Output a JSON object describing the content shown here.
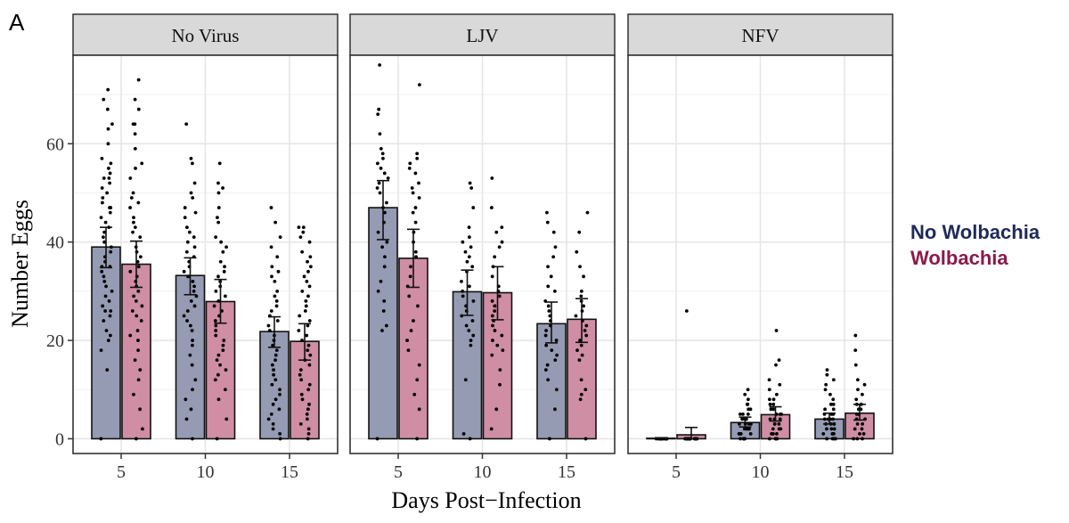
{
  "panel_letter": "A",
  "chart_data": {
    "type": "bar",
    "xlabel": "Days Post−Infection",
    "ylabel": "Number Eggs",
    "categories": [
      "5",
      "10",
      "15"
    ],
    "ylim": [
      -3,
      78
    ],
    "yticks": [
      0,
      20,
      40,
      60
    ],
    "grid": true,
    "legend_position": "right",
    "series_names": [
      "No Wolbachia",
      "Wolbachia"
    ],
    "colors": {
      "No Wolbachia": "#1f2a5a",
      "Wolbachia": "#8b1a4a",
      "No Wolbachia fill": "#959bb3",
      "Wolbachia fill": "#cf8ea3",
      "strip": "#d9d9d9"
    },
    "panels": [
      {
        "title": "No Virus",
        "bars": [
          {
            "day": "5",
            "group": "No Wolbachia",
            "mean": 39.0,
            "se_low": 34.8,
            "se_high": 43.0,
            "points": [
              71,
              69,
              67,
              64,
              63,
              60,
              57,
              56,
              55,
              54,
              53,
              53,
              52,
              51,
              50,
              49,
              48,
              47,
              47,
              46,
              45,
              44,
              43,
              42,
              41,
              40,
              39,
              38,
              37,
              36,
              35,
              35,
              34,
              33,
              32,
              31,
              30,
              29,
              28,
              27,
              26,
              26,
              25,
              24,
              22,
              21,
              20,
              18,
              14,
              0
            ]
          },
          {
            "day": "5",
            "group": "Wolbachia",
            "mean": 35.5,
            "se_low": 30.8,
            "se_high": 40.2,
            "points": [
              73,
              69,
              67,
              64,
              64,
              62,
              59,
              56,
              55,
              53,
              50,
              49,
              48,
              47,
              45,
              44,
              43,
              42,
              41,
              39,
              38,
              37,
              36,
              35,
              34,
              33,
              32,
              31,
              30,
              29,
              28,
              27,
              26,
              25,
              24,
              22,
              21,
              20,
              18,
              16,
              14,
              12,
              9,
              6,
              2,
              0
            ]
          },
          {
            "day": "10",
            "group": "No Wolbachia",
            "mean": 33.2,
            "se_low": 29.3,
            "se_high": 36.8,
            "points": [
              64,
              57,
              56,
              52,
              50,
              49,
              47,
              46,
              45,
              43,
              42,
              41,
              40,
              39,
              38,
              37,
              36,
              35,
              34,
              33,
              32,
              31,
              30,
              29,
              28,
              27,
              26,
              25,
              24,
              23,
              22,
              20,
              19,
              17,
              15,
              12,
              10,
              8,
              6,
              4,
              0
            ]
          },
          {
            "day": "10",
            "group": "Wolbachia",
            "mean": 27.9,
            "se_low": 23.5,
            "se_high": 32.4,
            "points": [
              56,
              52,
              51,
              50,
              47,
              45,
              44,
              41,
              40,
              39,
              38,
              36,
              35,
              34,
              33,
              32,
              31,
              30,
              29,
              28,
              27,
              26,
              25,
              24,
              23,
              22,
              21,
              20,
              19,
              18,
              17,
              16,
              15,
              14,
              13,
              12,
              10,
              8,
              4,
              0
            ]
          },
          {
            "day": "15",
            "group": "No Wolbachia",
            "mean": 21.8,
            "se_low": 18.6,
            "se_high": 24.8,
            "points": [
              47,
              44,
              41,
              39,
              37,
              35,
              34,
              33,
              32,
              30,
              29,
              28,
              27,
              26,
              25,
              24,
              23,
              22,
              21,
              20,
              19,
              18,
              17,
              16,
              15,
              14,
              13,
              12,
              11,
              10,
              9,
              8,
              7,
              6,
              5,
              4,
              3,
              2,
              1,
              0
            ]
          },
          {
            "day": "15",
            "group": "Wolbachia",
            "mean": 19.8,
            "se_low": 16.0,
            "se_high": 23.4,
            "points": [
              43,
              43,
              42,
              41,
              40,
              38,
              37,
              36,
              35,
              34,
              33,
              32,
              31,
              30,
              29,
              28,
              27,
              26,
              25,
              24,
              23,
              22,
              21,
              20,
              19,
              18,
              17,
              16,
              15,
              14,
              13,
              12,
              11,
              10,
              9,
              8,
              7,
              6,
              5,
              4,
              3,
              2,
              1,
              0
            ]
          }
        ]
      },
      {
        "title": "LJV",
        "bars": [
          {
            "day": "5",
            "group": "No Wolbachia",
            "mean": 47.0,
            "se_low": 40.5,
            "se_high": 52.5,
            "points": [
              76,
              67,
              66,
              62,
              59,
              58,
              57,
              56,
              55,
              54,
              53,
              52,
              51,
              50,
              48,
              47,
              46,
              44,
              42,
              40,
              39,
              37,
              35,
              32,
              30,
              28,
              26,
              23,
              22,
              0
            ]
          },
          {
            "day": "5",
            "group": "Wolbachia",
            "mean": 36.7,
            "se_low": 30.8,
            "se_high": 42.6,
            "points": [
              72,
              58,
              57,
              56,
              55,
              54,
              52,
              51,
              50,
              49,
              47,
              46,
              44,
              42,
              40,
              38,
              37,
              35,
              33,
              31,
              29,
              27,
              24,
              22,
              20,
              18,
              15,
              12,
              9,
              6,
              0
            ]
          },
          {
            "day": "10",
            "group": "No Wolbachia",
            "mean": 29.9,
            "se_low": 25.1,
            "se_high": 34.3,
            "points": [
              52,
              51,
              47,
              43,
              41,
              40,
              39,
              38,
              37,
              36,
              35,
              34,
              32,
              31,
              30,
              29,
              28,
              27,
              26,
              25,
              24,
              23,
              22,
              21,
              20,
              19,
              12,
              1,
              0
            ]
          },
          {
            "day": "10",
            "group": "Wolbachia",
            "mean": 29.7,
            "se_low": 24.2,
            "se_high": 35.0,
            "points": [
              53,
              47,
              43,
              42,
              40,
              39,
              37,
              35,
              33,
              31,
              30,
              29,
              28,
              27,
              26,
              25,
              24,
              23,
              22,
              21,
              20,
              19,
              18,
              17,
              14,
              11,
              6,
              2
            ]
          },
          {
            "day": "15",
            "group": "No Wolbachia",
            "mean": 23.4,
            "se_low": 19.5,
            "se_high": 27.8,
            "points": [
              46,
              44,
              42,
              39,
              37,
              35,
              33,
              31,
              30,
              28,
              27,
              26,
              25,
              24,
              23,
              22,
              21,
              20,
              19,
              18,
              17,
              16,
              15,
              14,
              12,
              10,
              6,
              0
            ]
          },
          {
            "day": "15",
            "group": "Wolbachia",
            "mean": 24.3,
            "se_low": 19.6,
            "se_high": 28.5,
            "points": [
              46,
              42,
              38,
              35,
              33,
              30,
              29,
              28,
              27,
              26,
              25,
              24,
              23,
              22,
              21,
              20,
              19,
              18,
              17,
              16,
              12,
              10,
              9,
              8,
              0
            ]
          }
        ]
      },
      {
        "title": "NFV",
        "bars": [
          {
            "day": "5",
            "group": "No Wolbachia",
            "mean": 0.1,
            "se_low": 0.0,
            "se_high": 0.2,
            "points": [
              0,
              0,
              0,
              0,
              0,
              0,
              0,
              0,
              0,
              0,
              0,
              0,
              0,
              0
            ]
          },
          {
            "day": "5",
            "group": "Wolbachia",
            "mean": 0.8,
            "se_low": 0.0,
            "se_high": 2.3,
            "points": [
              26,
              0,
              0,
              0,
              0,
              0,
              0,
              0,
              0,
              0,
              0,
              0,
              0,
              0,
              0,
              0,
              0,
              0
            ]
          },
          {
            "day": "10",
            "group": "No Wolbachia",
            "mean": 3.3,
            "se_low": 2.4,
            "se_high": 4.4,
            "points": [
              10,
              9,
              8,
              7,
              7,
              6,
              6,
              5,
              5,
              5,
              4,
              4,
              4,
              3,
              3,
              3,
              3,
              2,
              2,
              2,
              2,
              1,
              1,
              1,
              1,
              0,
              0,
              0,
              0,
              0
            ]
          },
          {
            "day": "10",
            "group": "Wolbachia",
            "mean": 4.9,
            "se_low": 3.6,
            "se_high": 6.5,
            "points": [
              22,
              16,
              15,
              12,
              11,
              10,
              9,
              8,
              8,
              7,
              7,
              6,
              6,
              5,
              5,
              5,
              4,
              4,
              4,
              3,
              3,
              3,
              2,
              2,
              2,
              1,
              1,
              1,
              0,
              0,
              0,
              0
            ]
          },
          {
            "day": "15",
            "group": "No Wolbachia",
            "mean": 4.0,
            "se_low": 3.0,
            "se_high": 5.2,
            "points": [
              14,
              13,
              12,
              11,
              10,
              9,
              8,
              7,
              7,
              6,
              6,
              5,
              5,
              5,
              4,
              4,
              4,
              4,
              3,
              3,
              3,
              3,
              2,
              2,
              2,
              1,
              1,
              1,
              0,
              0,
              0,
              0
            ]
          },
          {
            "day": "15",
            "group": "Wolbachia",
            "mean": 5.2,
            "se_low": 3.8,
            "se_high": 7.0,
            "points": [
              21,
              18,
              15,
              12,
              11,
              10,
              9,
              8,
              7,
              7,
              6,
              6,
              5,
              5,
              5,
              4,
              4,
              3,
              3,
              2,
              2,
              1,
              1,
              0,
              0,
              0
            ]
          }
        ]
      }
    ]
  }
}
